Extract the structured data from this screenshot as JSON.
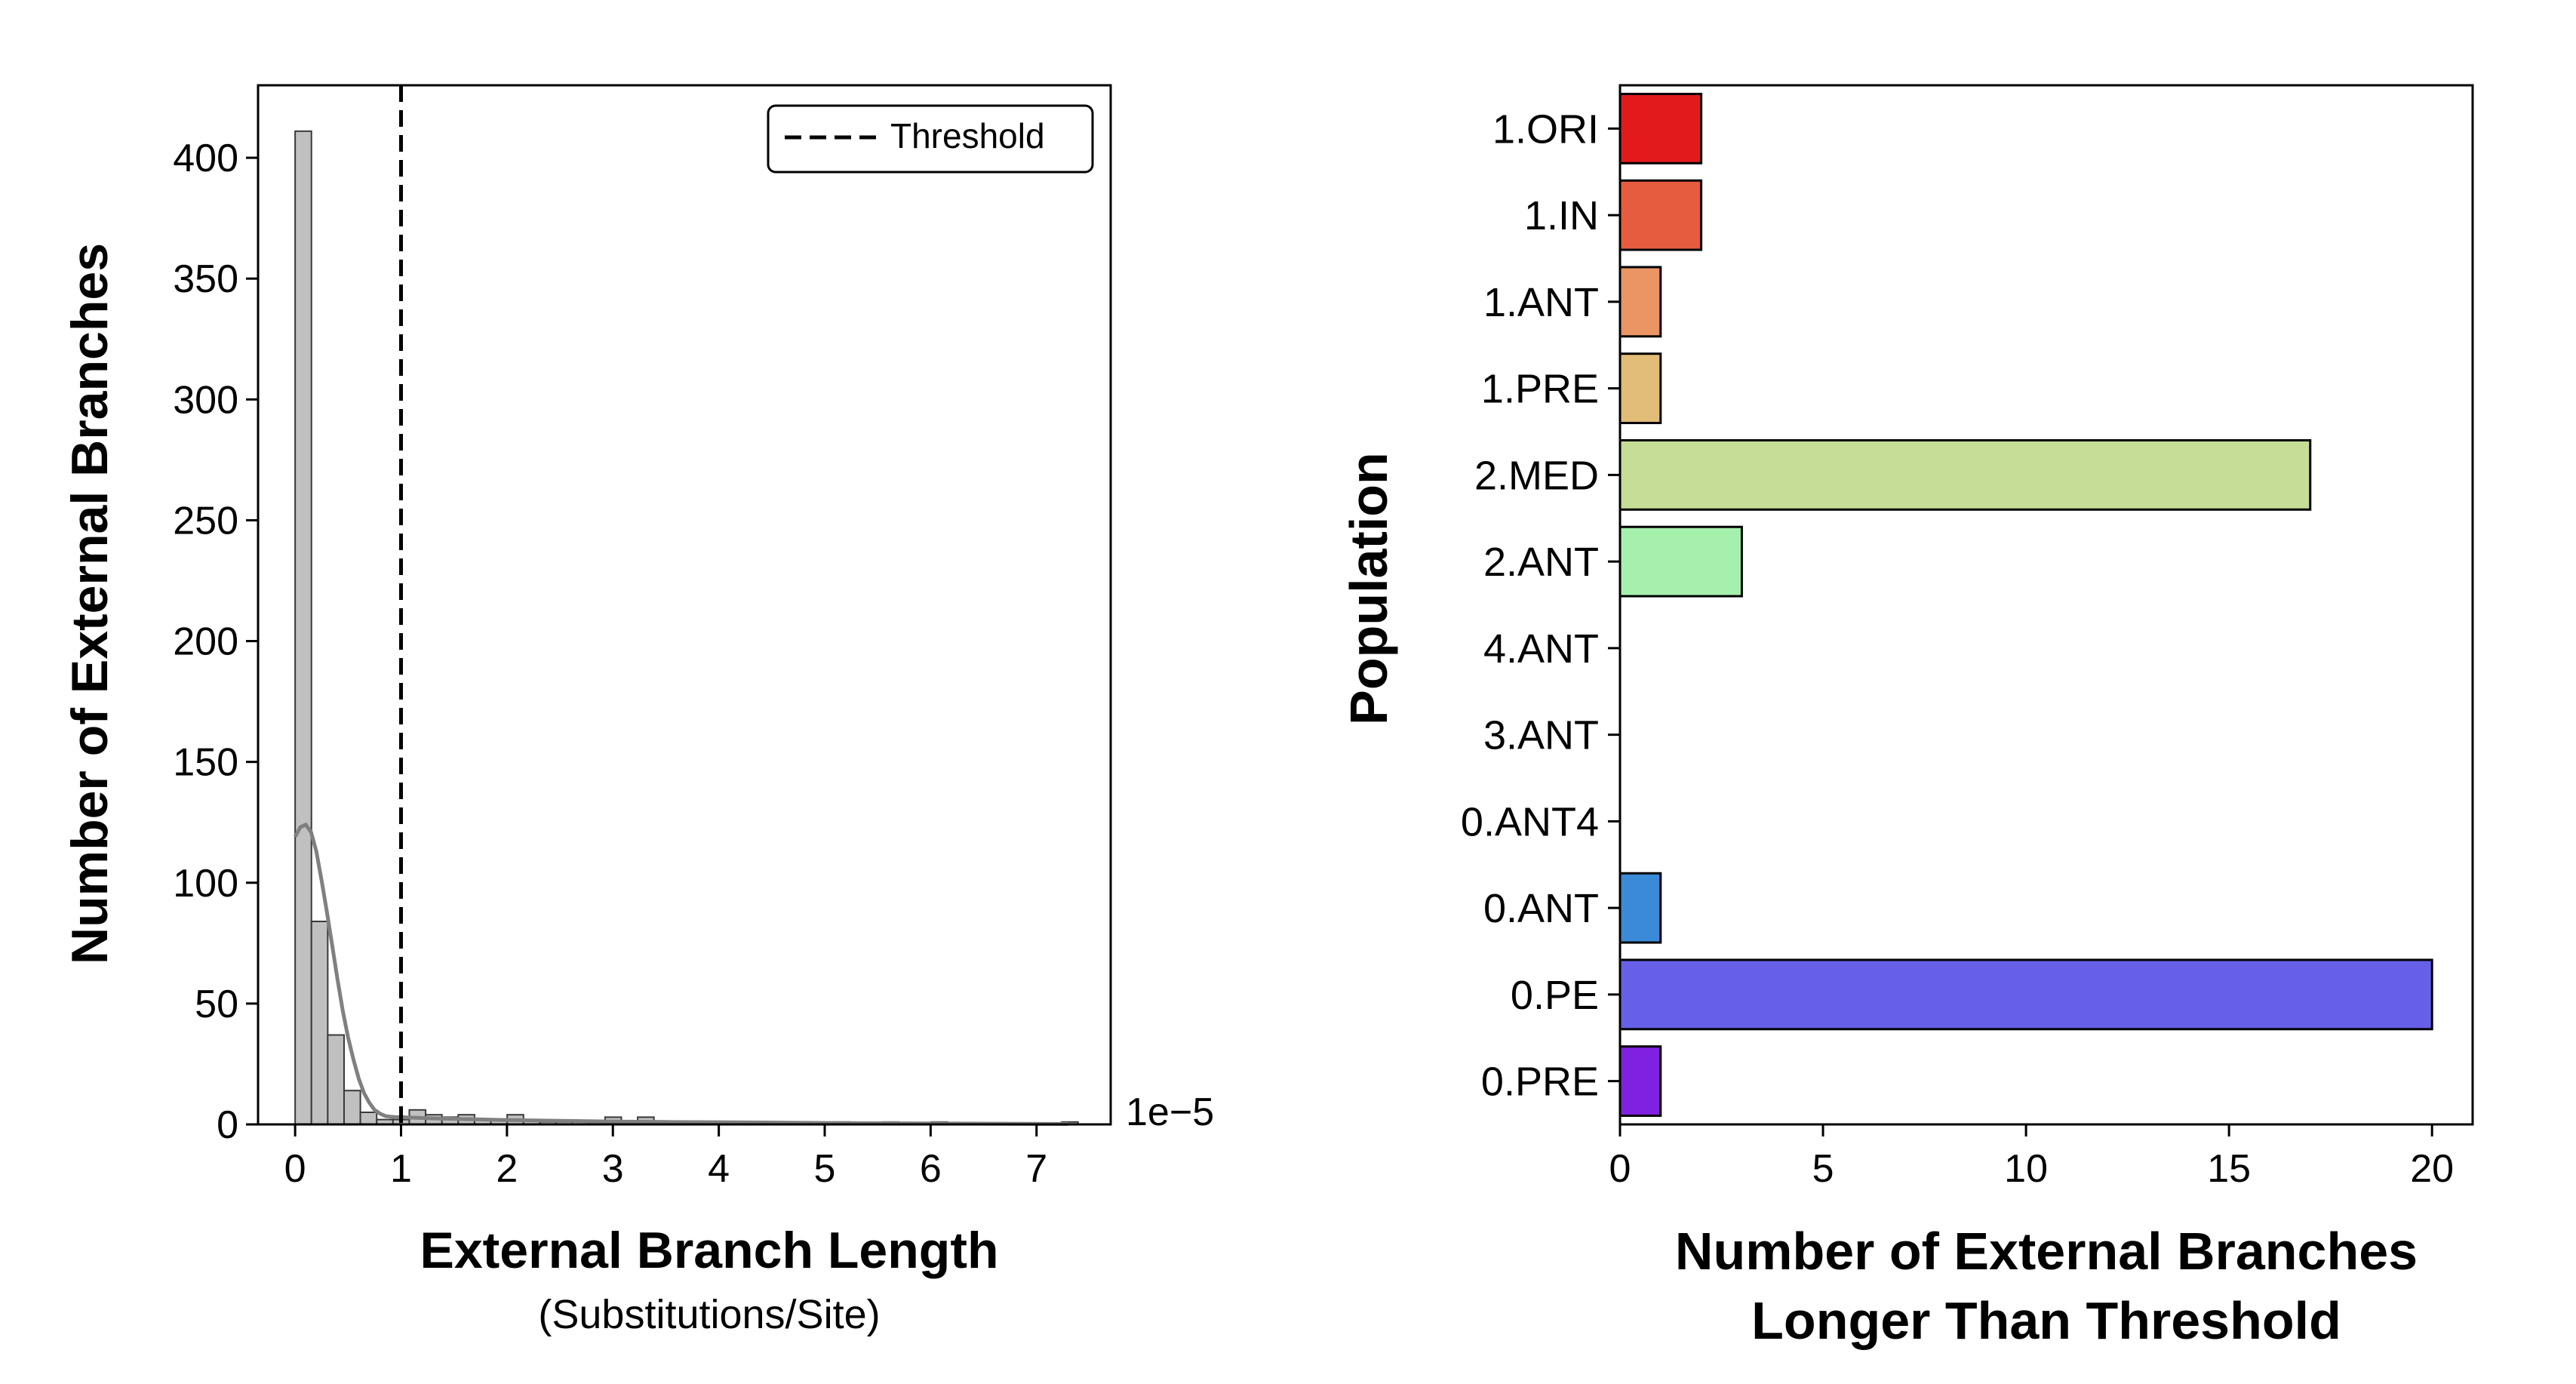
{
  "chart_data": [
    {
      "type": "bar",
      "subtype": "histogram",
      "xlabel": "External Branch Length",
      "xlabel_sub": "(Substitutions/Site)",
      "ylabel": "Number of External Branches",
      "x_offset_text": "1e−5",
      "xlim": [
        -0.35,
        7.7
      ],
      "ylim": [
        0,
        430
      ],
      "xticks": [
        0,
        1,
        2,
        3,
        4,
        5,
        6,
        7
      ],
      "yticks": [
        0,
        50,
        100,
        150,
        200,
        250,
        300,
        350,
        400
      ],
      "bin_width": 0.154,
      "bins": [
        {
          "x": 0.0,
          "count": 411
        },
        {
          "x": 0.154,
          "count": 84
        },
        {
          "x": 0.308,
          "count": 37
        },
        {
          "x": 0.462,
          "count": 14
        },
        {
          "x": 0.616,
          "count": 5
        },
        {
          "x": 0.77,
          "count": 2
        },
        {
          "x": 0.924,
          "count": 2
        },
        {
          "x": 1.078,
          "count": 6
        },
        {
          "x": 1.232,
          "count": 4
        },
        {
          "x": 1.386,
          "count": 3
        },
        {
          "x": 1.54,
          "count": 4
        },
        {
          "x": 1.694,
          "count": 2
        },
        {
          "x": 1.848,
          "count": 2
        },
        {
          "x": 2.002,
          "count": 4
        },
        {
          "x": 2.156,
          "count": 2
        },
        {
          "x": 2.31,
          "count": 1
        },
        {
          "x": 2.464,
          "count": 1
        },
        {
          "x": 2.618,
          "count": 1
        },
        {
          "x": 2.772,
          "count": 1
        },
        {
          "x": 2.926,
          "count": 3
        },
        {
          "x": 3.08,
          "count": 1
        },
        {
          "x": 3.234,
          "count": 3
        },
        {
          "x": 3.388,
          "count": 1
        },
        {
          "x": 3.542,
          "count": 1
        },
        {
          "x": 3.696,
          "count": 1
        },
        {
          "x": 3.85,
          "count": 1
        },
        {
          "x": 4.004,
          "count": 1
        },
        {
          "x": 4.158,
          "count": 1
        },
        {
          "x": 4.312,
          "count": 1
        },
        {
          "x": 4.466,
          "count": 1
        },
        {
          "x": 4.62,
          "count": 1
        },
        {
          "x": 5.082,
          "count": 1
        },
        {
          "x": 5.544,
          "count": 1
        },
        {
          "x": 6.006,
          "count": 1
        },
        {
          "x": 7.238,
          "count": 1
        }
      ],
      "kde": {
        "x": [
          0.0,
          0.05,
          0.1,
          0.15,
          0.2,
          0.25,
          0.3,
          0.35,
          0.4,
          0.45,
          0.5,
          0.55,
          0.6,
          0.65,
          0.7,
          0.75,
          0.8,
          0.85,
          0.9,
          0.95,
          1.0,
          1.1,
          1.3,
          1.6,
          2.0,
          2.5,
          3.0,
          3.5,
          4.0,
          5.0,
          6.0,
          7.3
        ],
        "y": [
          119,
          123,
          124,
          121,
          113,
          101,
          88,
          74,
          60,
          47,
          36,
          27,
          19,
          13,
          9,
          6,
          4.5,
          3.5,
          3.2,
          3,
          3,
          2.8,
          2.5,
          2.2,
          1.8,
          1.5,
          1.2,
          1.0,
          0.9,
          0.6,
          0.4,
          0.2
        ]
      },
      "threshold": 1.0,
      "legend": {
        "label": "Threshold",
        "placement": "top-right"
      },
      "colors": {
        "bar_fill": "#c0c0c0",
        "bar_edge": "#3a3a3a",
        "kde": "#808080",
        "threshold": "#000000"
      }
    },
    {
      "type": "bar",
      "orientation": "horizontal",
      "xlabel_line1": "Number of External Branches",
      "xlabel_line2": "Longer Than Threshold",
      "ylabel": "Population",
      "xlim": [
        0,
        21
      ],
      "xticks": [
        0,
        5,
        10,
        15,
        20
      ],
      "categories": [
        "1.ORI",
        "1.IN",
        "1.ANT",
        "1.PRE",
        "2.MED",
        "2.ANT",
        "4.ANT",
        "3.ANT",
        "0.ANT4",
        "0.ANT",
        "0.PE",
        "0.PRE"
      ],
      "values": [
        2,
        2,
        1,
        1,
        17,
        3,
        0,
        0,
        0,
        1,
        20,
        1
      ],
      "colors": [
        "#e31a1c",
        "#e65c3e",
        "#ea9563",
        "#e2bd78",
        "#c5dd94",
        "#a6f0ad",
        "#8fc9e6",
        "#6fa8e4",
        "#4f7ee0",
        "#3b8ad8",
        "#6660e8",
        "#8020e0"
      ]
    }
  ]
}
